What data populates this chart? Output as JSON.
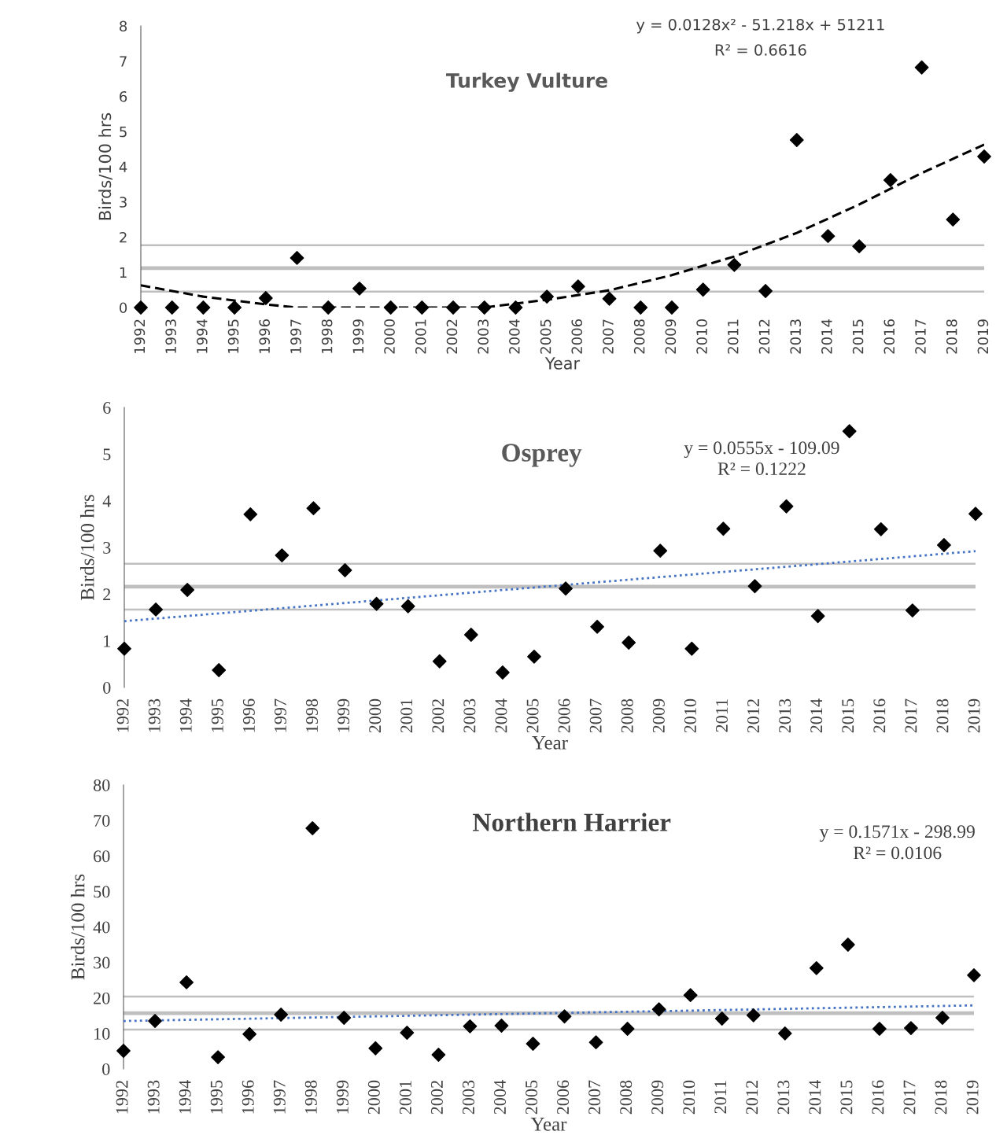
{
  "chart_data": [
    {
      "type": "scatter",
      "title": "Turkey Vulture",
      "xlabel": "Year",
      "ylabel": "Birds/100 hrs",
      "x": [
        1992,
        1993,
        1994,
        1995,
        1996,
        1997,
        1998,
        1999,
        2000,
        2001,
        2002,
        2003,
        2004,
        2005,
        2006,
        2007,
        2008,
        2009,
        2010,
        2011,
        2012,
        2013,
        2014,
        2015,
        2016,
        2017,
        2018,
        2019
      ],
      "xlim": [
        1992,
        2019
      ],
      "xticks": [
        1992,
        1993,
        1994,
        1995,
        1996,
        1997,
        1998,
        1999,
        2000,
        2001,
        2002,
        2003,
        2004,
        2005,
        2006,
        2007,
        2008,
        2009,
        2010,
        2011,
        2012,
        2013,
        2014,
        2015,
        2016,
        2017,
        2018,
        2019
      ],
      "series": [
        {
          "color": "#000000",
          "marker": "diamond",
          "values": [
            0,
            0,
            0,
            0,
            0.27,
            1.41,
            0,
            0.54,
            0,
            0,
            0,
            0,
            0,
            0.31,
            0.6,
            0.25,
            0,
            0,
            0.51,
            1.21,
            0.47,
            4.76,
            2.03,
            1.74,
            3.62,
            6.82,
            2.5,
            4.29
          ]
        },
        {
          "type": "line",
          "color": "#000000",
          "marker": "none",
          "line_style": "dashed",
          "x": [
            1992,
            1994,
            1996,
            1997,
            2003,
            2005,
            2007,
            2009,
            2011,
            2013,
            2015,
            2017,
            2019
          ],
          "values": [
            0.63,
            0.31,
            0.09,
            0,
            0,
            0.22,
            0.49,
            0.92,
            1.45,
            2.12,
            2.93,
            3.82,
            4.63
          ]
        }
      ],
      "ylim": [
        0,
        8
      ],
      "yticks": [
        0,
        1,
        2,
        3,
        4,
        5,
        6,
        7,
        8
      ],
      "grid": false,
      "ref_lines": [
        {
          "axis": "y",
          "value": 1.77,
          "color": "#bfbfbf"
        },
        {
          "axis": "y",
          "value": 1.12,
          "color": "#bfbfbf"
        },
        {
          "axis": "y",
          "value": 0.45,
          "color": "#bfbfbf"
        }
      ],
      "annotations": [
        "y = 0.0128x² - 51.218x + 51211",
        "R² = 0.6616"
      ]
    },
    {
      "type": "scatter",
      "title": "Osprey",
      "xlabel": "Year",
      "ylabel": "Birds/100 hrs",
      "x": [
        1992,
        1993,
        1994,
        1995,
        1996,
        1997,
        1998,
        1999,
        2000,
        2001,
        2002,
        2003,
        2004,
        2005,
        2006,
        2007,
        2008,
        2009,
        2010,
        2011,
        2012,
        2013,
        2014,
        2015,
        2016,
        2017,
        2018,
        2019
      ],
      "xlim": [
        1992,
        2019
      ],
      "xticks": [
        1992,
        1993,
        1994,
        1995,
        1996,
        1997,
        1998,
        1999,
        2000,
        2001,
        2002,
        2003,
        2004,
        2005,
        2006,
        2007,
        2008,
        2009,
        2010,
        2011,
        2012,
        2013,
        2014,
        2015,
        2016,
        2017,
        2018,
        2019
      ],
      "series": [
        {
          "color": "#000000",
          "marker": "diamond",
          "values": [
            0.83,
            1.67,
            2.09,
            0.37,
            3.71,
            2.83,
            3.84,
            2.51,
            1.79,
            1.74,
            0.56,
            1.13,
            0.32,
            0.66,
            2.12,
            1.3,
            0.96,
            2.93,
            0.83,
            3.4,
            2.17,
            3.88,
            1.53,
            5.49,
            3.39,
            1.65,
            3.05,
            3.72
          ]
        },
        {
          "type": "line",
          "color": "#4472c4",
          "marker": "none",
          "line_style": "dotted",
          "x": [
            1992,
            2019
          ],
          "values": [
            1.42,
            2.92
          ]
        }
      ],
      "ylim": [
        0,
        6
      ],
      "yticks": [
        0,
        1,
        2,
        3,
        4,
        5,
        6
      ],
      "grid": false,
      "ref_lines": [
        {
          "axis": "y",
          "value": 2.65,
          "color": "#bfbfbf"
        },
        {
          "axis": "y",
          "value": 2.16,
          "color": "#bfbfbf"
        },
        {
          "axis": "y",
          "value": 1.67,
          "color": "#bfbfbf"
        }
      ],
      "annotations": [
        "y = 0.0555x - 109.09",
        "R² = 0.1222"
      ]
    },
    {
      "type": "scatter",
      "title": "Northern Harrier",
      "xlabel": "Year",
      "ylabel": "Birds/100 hrs",
      "x": [
        1992,
        1993,
        1994,
        1995,
        1996,
        1997,
        1998,
        1999,
        2000,
        2001,
        2002,
        2003,
        2004,
        2005,
        2006,
        2007,
        2008,
        2009,
        2010,
        2011,
        2012,
        2013,
        2014,
        2015,
        2016,
        2017,
        2018,
        2019
      ],
      "xlim": [
        1992,
        2019
      ],
      "xticks": [
        1992,
        1993,
        1994,
        1995,
        1996,
        1997,
        1998,
        1999,
        2000,
        2001,
        2002,
        2003,
        2004,
        2005,
        2006,
        2007,
        2008,
        2009,
        2010,
        2011,
        2012,
        2013,
        2014,
        2015,
        2016,
        2017,
        2018,
        2019
      ],
      "series": [
        {
          "color": "#000000",
          "marker": "diamond",
          "values": [
            5.1,
            13.5,
            24.4,
            3.3,
            9.8,
            15.3,
            67.8,
            14.4,
            5.8,
            10.2,
            4.0,
            12.0,
            12.2,
            7.1,
            14.8,
            7.5,
            11.3,
            16.8,
            20.8,
            14.2,
            15.1,
            10.0,
            28.4,
            35.0,
            11.3,
            11.5,
            14.4,
            26.4
          ]
        },
        {
          "type": "line",
          "color": "#4472c4",
          "marker": "none",
          "line_style": "dotted",
          "x": [
            1992,
            2019
          ],
          "values": [
            13.5,
            17.9
          ]
        }
      ],
      "ylim": [
        0,
        80
      ],
      "yticks": [
        0,
        10,
        20,
        30,
        40,
        50,
        60,
        70,
        80
      ],
      "grid": false,
      "ref_lines": [
        {
          "axis": "y",
          "value": 20.4,
          "color": "#bfbfbf"
        },
        {
          "axis": "y",
          "value": 15.7,
          "color": "#bfbfbf"
        },
        {
          "axis": "y",
          "value": 11.1,
          "color": "#bfbfbf"
        }
      ],
      "annotations": [
        "y = 0.1571x - 298.99",
        "R² = 0.0106"
      ]
    }
  ]
}
